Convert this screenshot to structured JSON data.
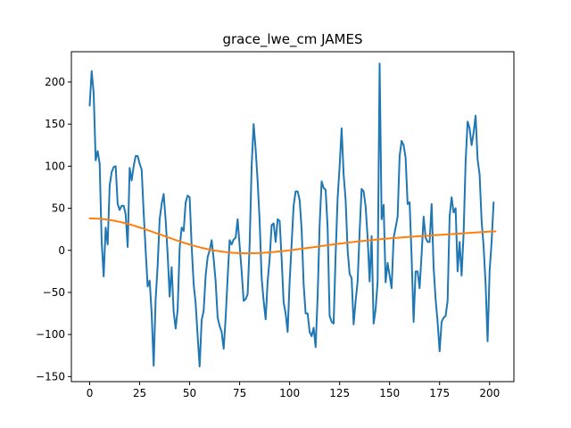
{
  "chart_data": {
    "type": "line",
    "title": "grace_lwe_cm JAMES",
    "xlabel": "",
    "ylabel": "",
    "xlim": [
      -9.15,
      212.15
    ],
    "ylim": [
      -156,
      236
    ],
    "xticks": [
      0,
      25,
      50,
      75,
      100,
      125,
      150,
      175,
      200
    ],
    "yticks": [
      -150,
      -100,
      -50,
      0,
      50,
      100,
      150,
      200
    ],
    "grid": false,
    "colors": [
      "#1f77b4",
      "#ff7f0e"
    ],
    "series": [
      {
        "values": [
          172,
          213,
          187,
          107,
          118,
          103,
          10,
          -31,
          27,
          7,
          77,
          93,
          99,
          100,
          55,
          48,
          53,
          53,
          43,
          4,
          98,
          83,
          100,
          112,
          112,
          103,
          96,
          45,
          0,
          -43,
          -36,
          -75,
          -137,
          -58,
          -18,
          37,
          55,
          67,
          36,
          -5,
          -55,
          -20,
          -73,
          -93,
          -70,
          3,
          27,
          23,
          57,
          65,
          63,
          5,
          -40,
          -63,
          -102,
          -138,
          -83,
          -72,
          -30,
          -8,
          0,
          12,
          -10,
          -37,
          -80,
          -90,
          -97,
          -117,
          -80,
          -32,
          12,
          7,
          13,
          15,
          37,
          5,
          -25,
          -60,
          -58,
          -52,
          7,
          100,
          150,
          120,
          82,
          35,
          -33,
          -60,
          -82,
          -37,
          -10,
          30,
          32,
          10,
          37,
          35,
          -10,
          -62,
          -75,
          -97,
          -37,
          8,
          53,
          70,
          70,
          60,
          25,
          -40,
          -75,
          -75,
          -97,
          -102,
          -92,
          -115,
          -55,
          30,
          82,
          74,
          72,
          27,
          -78,
          -85,
          -87,
          -5,
          62,
          100,
          145,
          90,
          60,
          0,
          -28,
          -33,
          -88,
          -60,
          -37,
          22,
          73,
          70,
          52,
          15,
          -37,
          17,
          -87,
          -70,
          -37,
          222,
          37,
          54,
          -38,
          -15,
          -30,
          -45,
          15,
          27,
          40,
          112,
          130,
          125,
          110,
          55,
          57,
          -8,
          -85,
          -25,
          -25,
          -45,
          -5,
          40,
          15,
          10,
          10,
          55,
          -20,
          -58,
          -85,
          -120,
          -85,
          -80,
          -78,
          -60,
          40,
          63,
          45,
          50,
          -25,
          10,
          -30,
          20,
          105,
          153,
          145,
          125,
          140,
          160,
          108,
          90,
          35,
          5,
          -40,
          -108,
          -25,
          10,
          57
        ],
        "x_start": 0,
        "x_step": 1
      },
      {
        "values": [
          38,
          37.9,
          37.8,
          37.7,
          37.5,
          37.2,
          36.9,
          36.5,
          36,
          35.5,
          35,
          34.3,
          33.7,
          33,
          32.2,
          31.4,
          30.6,
          29.7,
          28.8,
          27.8,
          26.9,
          25.9,
          24.9,
          23.8,
          22.8,
          21.7,
          20.6,
          19.6,
          18.5,
          17.4,
          16.3,
          15.3,
          14.2,
          13.2,
          12.1,
          11.1,
          10.1,
          9.1,
          8.2,
          7.3,
          6.4,
          5.5,
          4.7,
          3.9,
          3.1,
          2.4,
          1.7,
          1.1,
          0.5,
          -0.1,
          -0.6,
          -1.1,
          -1.5,
          -1.9,
          -2.2,
          -2.5,
          -2.8,
          -3,
          -3.2,
          -3.4,
          -3.5,
          -3.5,
          -3.6,
          -3.6,
          -3.5,
          -3.4,
          -3.3,
          -3.2,
          -3,
          -2.8,
          -2.6,
          -2.4,
          -2.1,
          -1.8,
          -1.5,
          -1.2,
          -0.9,
          -0.5,
          -0.2,
          0.2,
          0.5,
          0.9,
          1.3,
          1.7,
          2.1,
          2.5,
          2.9,
          3.3,
          3.7,
          4.1,
          4.5,
          5,
          5.4,
          5.8,
          6.2,
          6.6,
          7,
          7.4,
          7.8,
          8.2,
          8.5,
          8.9,
          9.3,
          9.6,
          10,
          10.3,
          10.7,
          11,
          11.3,
          11.6,
          11.9,
          12.2,
          12.5,
          12.8,
          13.1,
          13.4,
          13.7,
          13.9,
          14.2,
          14.4,
          14.7,
          14.9,
          15.1,
          15.4,
          15.6,
          15.8,
          16,
          16.2,
          16.4,
          16.6,
          16.8,
          17,
          17.2,
          17.4,
          17.6,
          17.8,
          18,
          18.2,
          18.4,
          18.6,
          18.8,
          19,
          19.2,
          19.4,
          19.6,
          19.8,
          20,
          20.2,
          20.4,
          20.6,
          20.8,
          21,
          21.2,
          21.4,
          21.6,
          21.8,
          22,
          22.2,
          22.4,
          22.5
        ],
        "x": [
          0,
          1.27,
          2.54,
          3.81,
          5.08,
          6.35,
          7.62,
          8.89,
          10.16,
          11.43,
          12.7,
          13.97,
          15.24,
          16.51,
          17.78,
          19.05,
          20.32,
          21.59,
          22.86,
          24.13,
          25.4,
          26.67,
          27.94,
          29.21,
          30.48,
          31.75,
          33.02,
          34.29,
          35.56,
          36.83,
          38.1,
          39.37,
          40.64,
          41.91,
          43.18,
          44.45,
          45.72,
          46.99,
          48.26,
          49.53,
          50.8,
          52.07,
          53.34,
          54.61,
          55.88,
          57.15,
          58.42,
          59.69,
          60.96,
          62.23,
          63.5,
          64.77,
          66.04,
          67.31,
          68.58,
          69.85,
          71.12,
          72.39,
          73.66,
          74.93,
          76.2,
          77.47,
          78.74,
          80.01,
          81.28,
          82.55,
          83.82,
          85.09,
          86.36,
          87.63,
          88.9,
          90.17,
          91.44,
          92.71,
          93.98,
          95.25,
          96.52,
          97.79,
          99.06,
          100.33,
          101.6,
          102.87,
          104.14,
          105.41,
          106.68,
          107.95,
          109.22,
          110.49,
          111.76,
          113.03,
          114.3,
          115.57,
          116.84,
          118.11,
          119.38,
          120.65,
          121.92,
          123.19,
          124.46,
          125.73,
          127,
          128.27,
          129.54,
          130.81,
          132.08,
          133.35,
          134.62,
          135.89,
          137.16,
          138.43,
          139.7,
          140.97,
          142.24,
          143.51,
          144.78,
          146.05,
          147.32,
          148.59,
          149.86,
          151.13,
          152.4,
          153.67,
          154.94,
          156.21,
          157.48,
          158.75,
          160.02,
          161.29,
          162.56,
          163.83,
          165.1,
          166.37,
          167.64,
          168.91,
          170.18,
          171.45,
          172.72,
          173.99,
          175.26,
          176.53,
          177.8,
          179.07,
          180.34,
          181.61,
          182.88,
          184.15,
          185.42,
          186.69,
          187.96,
          189.23,
          190.5,
          191.77,
          193.04,
          194.31,
          195.58,
          196.85,
          198.12,
          199.39,
          200.66,
          203
        ]
      }
    ]
  }
}
